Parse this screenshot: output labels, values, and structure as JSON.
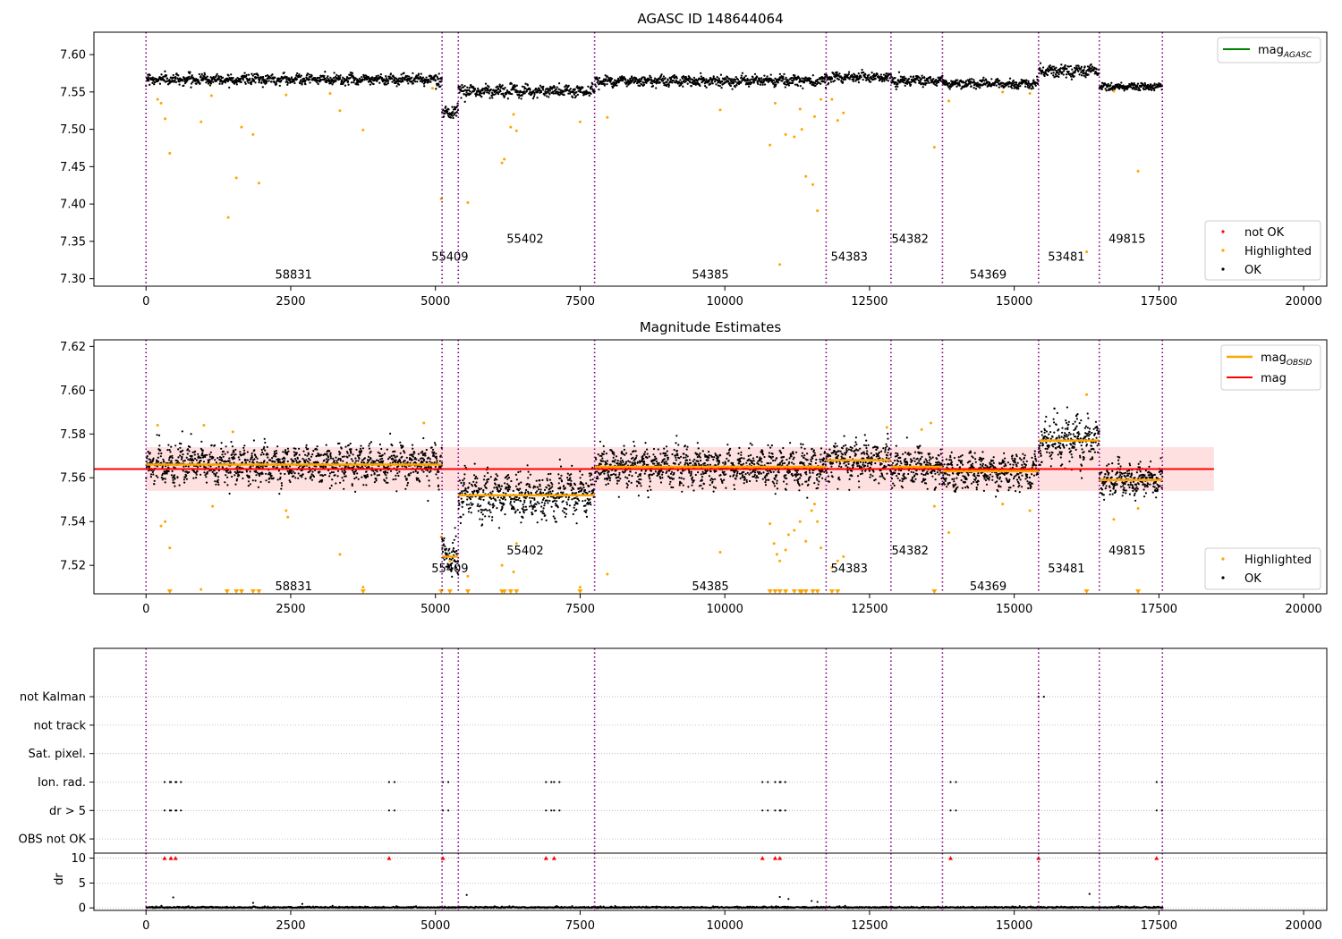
{
  "chart_data": [
    {
      "type": "scatter",
      "title": "AGASC ID 148644064",
      "xlim": [
        -900,
        20400
      ],
      "ylim": [
        7.29,
        7.63
      ],
      "xticks": [
        0,
        2500,
        5000,
        7500,
        10000,
        12500,
        15000,
        17500,
        20000
      ],
      "yticks": [
        7.3,
        7.35,
        7.4,
        7.45,
        7.5,
        7.55,
        7.6
      ],
      "ytick_labels": [
        "7.30",
        "7.35",
        "7.40",
        "7.45",
        "7.50",
        "7.55",
        "7.60"
      ],
      "grid": false,
      "legends": [
        {
          "position": "upper-right",
          "entries": [
            {
              "label": "mag",
              "sub": "AGASC",
              "color": "#008000",
              "marker": "line"
            }
          ]
        },
        {
          "position": "lower-right",
          "entries": [
            {
              "label": "not OK",
              "color": "#ff0000",
              "marker": "dot"
            },
            {
              "label": "Highlighted",
              "color": "#ffa500",
              "marker": "dot"
            },
            {
              "label": "OK",
              "color": "#000000",
              "marker": "dot"
            }
          ]
        }
      ],
      "obsids": [
        {
          "label": "58831",
          "x": 2550,
          "y": 7.305
        },
        {
          "label": "55409",
          "x": 5250,
          "y": 7.329
        },
        {
          "label": "55402",
          "x": 6550,
          "y": 7.353
        },
        {
          "label": "54385",
          "x": 9750,
          "y": 7.305
        },
        {
          "label": "54383",
          "x": 12150,
          "y": 7.329
        },
        {
          "label": "54382",
          "x": 13200,
          "y": 7.353
        },
        {
          "label": "54369",
          "x": 14550,
          "y": 7.305
        },
        {
          "label": "53481",
          "x": 15900,
          "y": 7.329
        },
        {
          "label": "49815",
          "x": 16950,
          "y": 7.353
        }
      ]
    },
    {
      "type": "scatter",
      "title": "Magnitude Estimates",
      "xlim": [
        -900,
        20400
      ],
      "ylim": [
        7.507,
        7.623
      ],
      "xticks": [
        0,
        2500,
        5000,
        7500,
        10000,
        12500,
        15000,
        17500,
        20000
      ],
      "yticks": [
        7.52,
        7.54,
        7.56,
        7.58,
        7.6,
        7.62
      ],
      "ytick_labels": [
        "7.52",
        "7.54",
        "7.56",
        "7.58",
        "7.60",
        "7.62"
      ],
      "grid": false,
      "mag": 7.564,
      "mag_band": [
        7.554,
        7.574
      ],
      "mag_line_x": [
        -900,
        18450
      ],
      "obsid_mags": [
        {
          "x": [
            0,
            5115
          ],
          "mag": 7.566
        },
        {
          "x": [
            5115,
            5395
          ],
          "mag": 7.524
        },
        {
          "x": [
            5395,
            7750
          ],
          "mag": 7.552
        },
        {
          "x": [
            7750,
            11750
          ],
          "mag": 7.565
        },
        {
          "x": [
            11750,
            12870
          ],
          "mag": 7.568
        },
        {
          "x": [
            12870,
            13760
          ],
          "mag": 7.565
        },
        {
          "x": [
            13760,
            15420
          ],
          "mag": 7.563
        },
        {
          "x": [
            15420,
            16470
          ],
          "mag": 7.577
        },
        {
          "x": [
            16470,
            17560
          ],
          "mag": 7.559
        }
      ],
      "legends": [
        {
          "position": "upper-right",
          "entries": [
            {
              "label": "mag",
              "sub": "OBSID",
              "color": "#ffa500",
              "marker": "line"
            },
            {
              "label": "mag",
              "color": "#ff0000",
              "marker": "line"
            }
          ]
        },
        {
          "position": "lower-right",
          "entries": [
            {
              "label": "Highlighted",
              "color": "#ffa500",
              "marker": "dot"
            },
            {
              "label": "OK",
              "color": "#000000",
              "marker": "dot"
            }
          ]
        }
      ],
      "obsids": [
        {
          "label": "58831",
          "x": 2550,
          "y": 7.5102
        },
        {
          "label": "55409",
          "x": 5250,
          "y": 7.5184
        },
        {
          "label": "55402",
          "x": 6550,
          "y": 7.5266
        },
        {
          "label": "54385",
          "x": 9750,
          "y": 7.5102
        },
        {
          "label": "54383",
          "x": 12150,
          "y": 7.5184
        },
        {
          "label": "54382",
          "x": 13200,
          "y": 7.5266
        },
        {
          "label": "54369",
          "x": 14550,
          "y": 7.5102
        },
        {
          "label": "53481",
          "x": 15900,
          "y": 7.5184
        },
        {
          "label": "49815",
          "x": 16950,
          "y": 7.5266
        }
      ]
    },
    {
      "type": "scatter",
      "title": "",
      "xlim": [
        -900,
        20400
      ],
      "ylim": [
        -0.5,
        6.7
      ],
      "categories": [
        "OBS not OK",
        "dr > 5",
        "Ion. rad.",
        "Sat. pixel.",
        "not track",
        "not Kalman"
      ],
      "flags": {
        "Ion. rad.": [
          320,
          430,
          510,
          4200,
          5130,
          6910,
          7050,
          10650,
          10870,
          10950,
          13900,
          17460
        ],
        "dr > 5": [
          320,
          430,
          510,
          4200,
          5130,
          6910,
          7050,
          10650,
          10870,
          10950,
          13900,
          17460
        ],
        "not Kalman": [
          15420
        ]
      },
      "grid": true
    },
    {
      "type": "scatter",
      "title": "",
      "ylabel": "dr",
      "xlim": [
        -900,
        20400
      ],
      "xticks": [
        0,
        2500,
        5000,
        7500,
        10000,
        12500,
        15000,
        17500,
        20000
      ],
      "ylim": [
        -0.5,
        11
      ],
      "yticks": [
        0,
        5,
        10
      ],
      "ytick_labels": [
        "0",
        "5",
        "10"
      ],
      "grid": true,
      "red_flags_at": 10,
      "red_flags_x": [
        320,
        430,
        510,
        4200,
        5130,
        6910,
        7050,
        10650,
        10870,
        10950,
        13900,
        15420,
        17460
      ],
      "outliers": [
        [
          470,
          2.1
        ],
        [
          1850,
          1.0
        ],
        [
          2700,
          0.8
        ],
        [
          5540,
          2.6
        ],
        [
          10950,
          2.2
        ],
        [
          11100,
          1.8
        ],
        [
          11500,
          1.4
        ],
        [
          16300,
          2.8
        ],
        [
          11600,
          1.2
        ]
      ]
    }
  ],
  "obsid_boundaries": [
    0,
    5115,
    5395,
    7750,
    11750,
    12870,
    13760,
    15420,
    16470,
    17560
  ],
  "segments": [
    {
      "x": [
        0,
        5115
      ],
      "agasc_mean": 7.567,
      "agasc_spread": 0.0045,
      "est_mean": 7.566,
      "est_spread": 0.0048
    },
    {
      "x": [
        5115,
        5395
      ],
      "agasc_mean": 7.523,
      "agasc_spread": 0.0045,
      "est_mean": 7.524,
      "est_spread": 0.0045
    },
    {
      "x": [
        5395,
        7750
      ],
      "agasc_mean": 7.551,
      "agasc_spread": 0.0055,
      "est_mean": 7.552,
      "est_spread": 0.0058
    },
    {
      "x": [
        7750,
        11750
      ],
      "agasc_mean": 7.565,
      "agasc_spread": 0.0045,
      "est_mean": 7.565,
      "est_spread": 0.0047
    },
    {
      "x": [
        11750,
        12870
      ],
      "agasc_mean": 7.57,
      "agasc_spread": 0.0045,
      "est_mean": 7.568,
      "est_spread": 0.0048
    },
    {
      "x": [
        12870,
        13760
      ],
      "agasc_mean": 7.565,
      "agasc_spread": 0.0045,
      "est_mean": 7.565,
      "est_spread": 0.0048
    },
    {
      "x": [
        13760,
        15420
      ],
      "agasc_mean": 7.561,
      "agasc_spread": 0.004,
      "est_mean": 7.563,
      "est_spread": 0.0045
    },
    {
      "x": [
        15420,
        16470
      ],
      "agasc_mean": 7.578,
      "agasc_spread": 0.005,
      "est_mean": 7.577,
      "est_spread": 0.0055
    },
    {
      "x": [
        16470,
        17560
      ],
      "agasc_mean": 7.557,
      "agasc_spread": 0.0035,
      "est_mean": 7.559,
      "est_spread": 0.004
    }
  ],
  "highlighted_points": [
    [
      330,
      7.514
    ],
    [
      410,
      7.468
    ],
    [
      950,
      7.51
    ],
    [
      1420,
      7.382
    ],
    [
      1560,
      7.435
    ],
    [
      1650,
      7.503
    ],
    [
      1850,
      7.493
    ],
    [
      1950,
      7.428
    ],
    [
      3750,
      7.499
    ],
    [
      3350,
      7.525
    ],
    [
      5100,
      7.407
    ],
    [
      5560,
      7.402
    ],
    [
      6150,
      7.455
    ],
    [
      6190,
      7.46
    ],
    [
      6300,
      7.503
    ],
    [
      6400,
      7.498
    ],
    [
      6350,
      7.52
    ],
    [
      7500,
      7.51
    ],
    [
      7970,
      7.516
    ],
    [
      9920,
      7.526
    ],
    [
      10780,
      7.479
    ],
    [
      10950,
      7.319
    ],
    [
      10870,
      7.535
    ],
    [
      11050,
      7.493
    ],
    [
      11200,
      7.49
    ],
    [
      11300,
      7.527
    ],
    [
      11330,
      7.5
    ],
    [
      11400,
      7.437
    ],
    [
      11520,
      7.426
    ],
    [
      11600,
      7.391
    ],
    [
      11550,
      7.517
    ],
    [
      11660,
      7.54
    ],
    [
      11850,
      7.54
    ],
    [
      11950,
      7.512
    ],
    [
      12050,
      7.522
    ],
    [
      13620,
      7.476
    ],
    [
      13870,
      7.538
    ],
    [
      16250,
      7.336
    ],
    [
      17140,
      7.444
    ],
    [
      2420,
      7.546
    ],
    [
      3180,
      7.548
    ],
    [
      1130,
      7.545
    ],
    [
      200,
      7.54
    ],
    [
      260,
      7.535
    ],
    [
      4950,
      7.555
    ],
    [
      14800,
      7.55
    ],
    [
      15270,
      7.548
    ],
    [
      16720,
      7.551
    ]
  ],
  "highlighted_points_est": [
    [
      330,
      7.54
    ],
    [
      260,
      7.538
    ],
    [
      410,
      7.528
    ],
    [
      950,
      7.509
    ],
    [
      1150,
      7.547
    ],
    [
      2420,
      7.545
    ],
    [
      2450,
      7.542
    ],
    [
      3350,
      7.525
    ],
    [
      3750,
      7.51
    ],
    [
      5100,
      7.533
    ],
    [
      5250,
      7.522
    ],
    [
      5560,
      7.515
    ],
    [
      6150,
      7.52
    ],
    [
      6350,
      7.517
    ],
    [
      6400,
      7.53
    ],
    [
      7500,
      7.51
    ],
    [
      7970,
      7.516
    ],
    [
      9920,
      7.526
    ],
    [
      10780,
      7.539
    ],
    [
      10850,
      7.53
    ],
    [
      10900,
      7.525
    ],
    [
      10950,
      7.522
    ],
    [
      11050,
      7.527
    ],
    [
      11100,
      7.534
    ],
    [
      11200,
      7.536
    ],
    [
      11300,
      7.54
    ],
    [
      11400,
      7.531
    ],
    [
      11500,
      7.545
    ],
    [
      11550,
      7.548
    ],
    [
      11600,
      7.54
    ],
    [
      11660,
      7.528
    ],
    [
      11850,
      7.519
    ],
    [
      11950,
      7.522
    ],
    [
      12050,
      7.524
    ],
    [
      13620,
      7.547
    ],
    [
      13870,
      7.535
    ],
    [
      14800,
      7.548
    ],
    [
      15270,
      7.545
    ],
    [
      16250,
      7.598
    ],
    [
      16720,
      7.541
    ],
    [
      17140,
      7.546
    ],
    [
      200,
      7.584
    ],
    [
      1000,
      7.584
    ],
    [
      1500,
      7.581
    ],
    [
      4800,
      7.585
    ],
    [
      12800,
      7.583
    ],
    [
      13400,
      7.582
    ],
    [
      13560,
      7.585
    ]
  ],
  "offscale_marks_est": [
    410,
    1400,
    1560,
    1650,
    1850,
    1950,
    3750,
    5100,
    5250,
    5560,
    6150,
    6190,
    6300,
    6400,
    7500,
    10780,
    10870,
    10950,
    11050,
    11200,
    11300,
    11330,
    11400,
    11520,
    11600,
    11850,
    11950,
    13620,
    16250,
    17140
  ]
}
